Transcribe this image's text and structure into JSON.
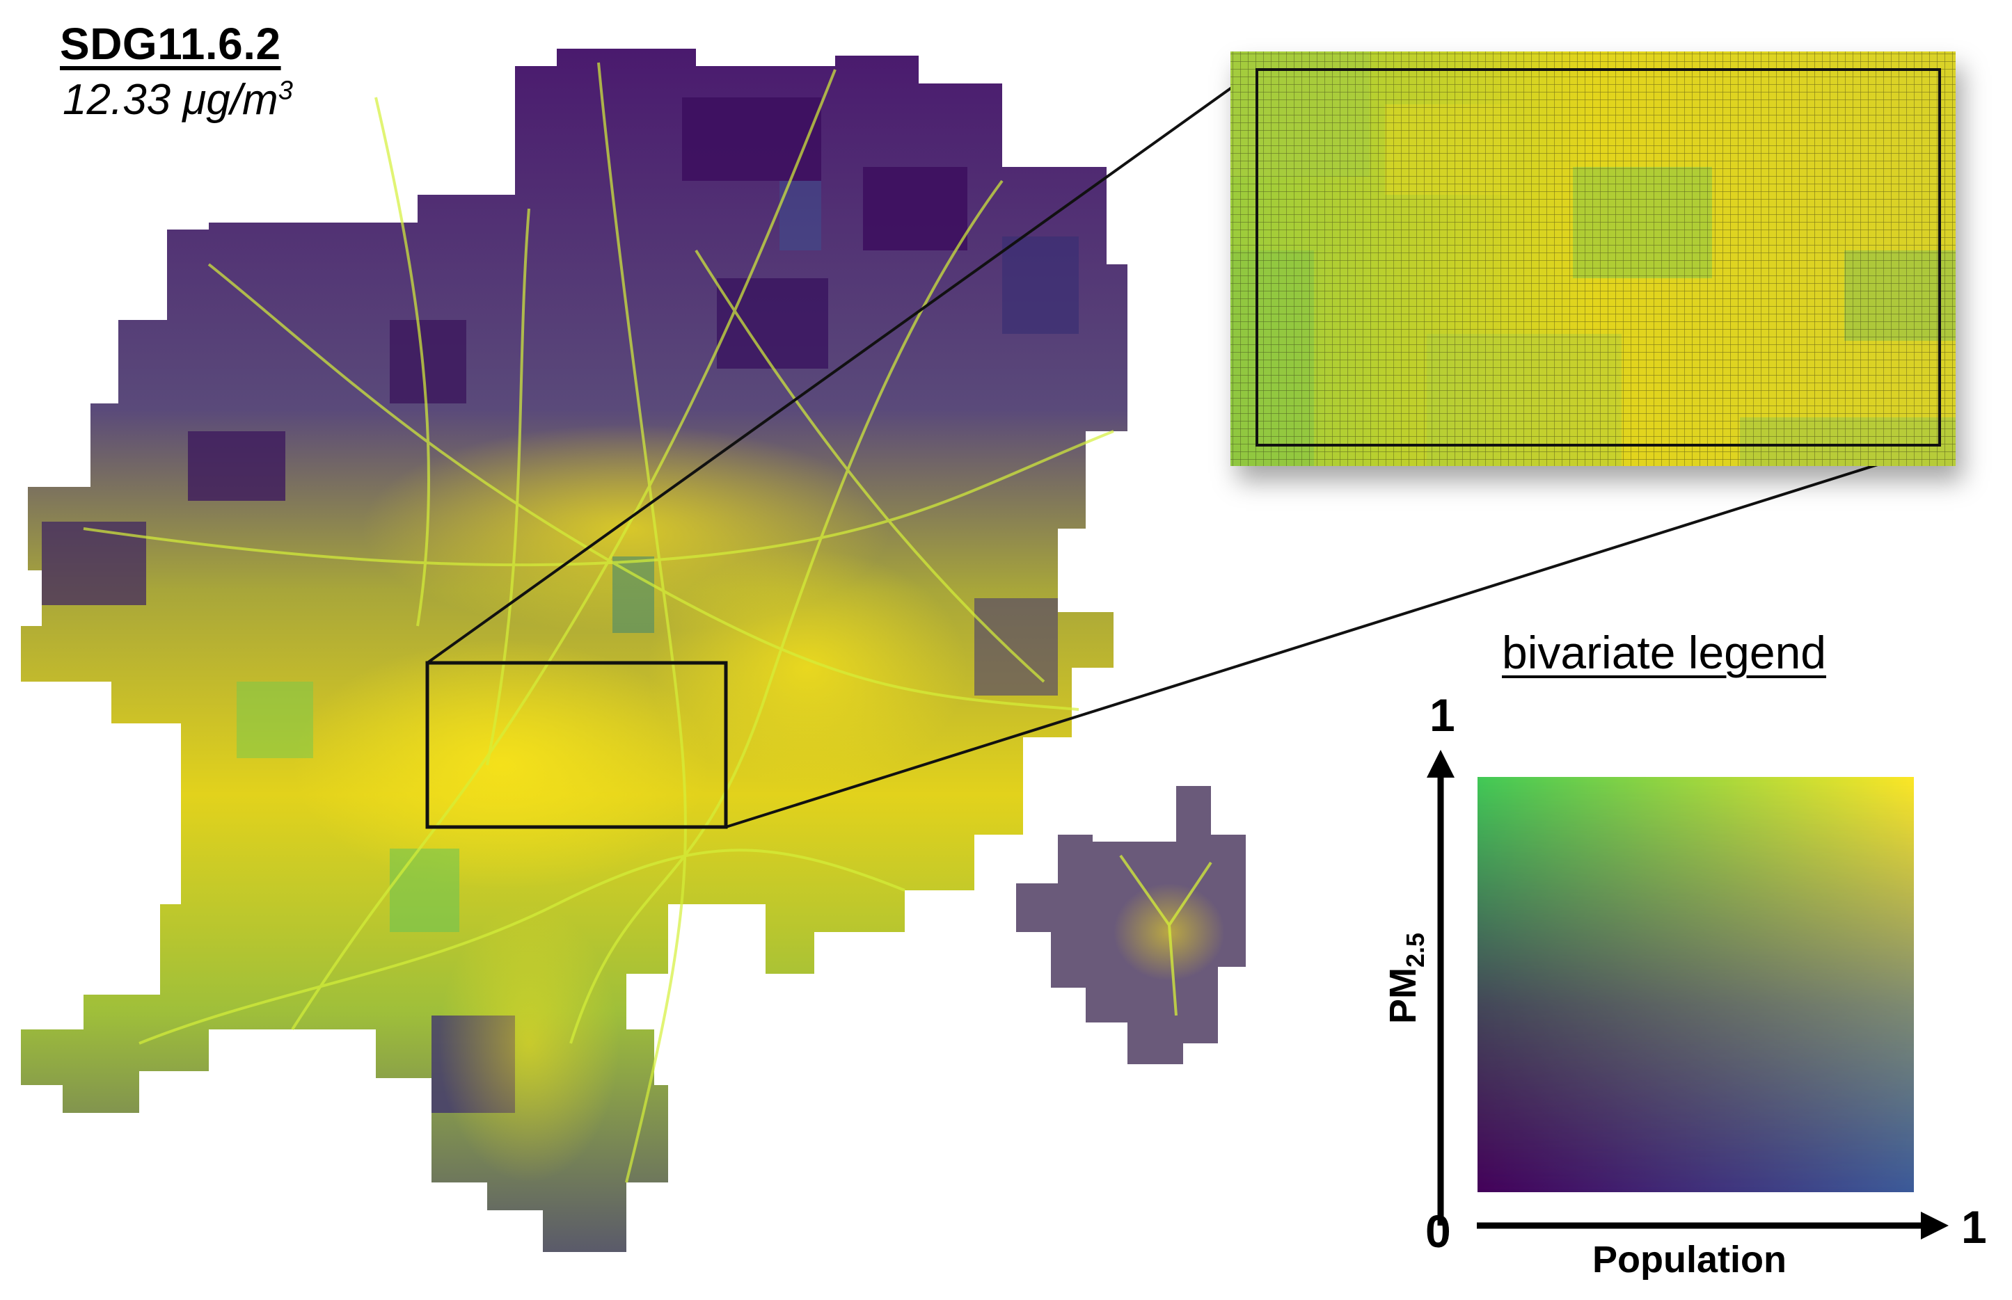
{
  "header": {
    "title": "SDG11.6.2",
    "value": "12.33 μg/m",
    "value_superscript": "3"
  },
  "legend": {
    "title": "bivariate legend",
    "x_axis_label": "Population",
    "y_axis_label_main": "PM",
    "y_axis_label_sub": "2.5",
    "origin_tick": "0",
    "x_max_tick": "1",
    "y_max_tick": "1",
    "colors": {
      "low_low": "#44015a",
      "high_population_low_pm": "#3b5a9a",
      "low_population_high_pm": "#41c956",
      "high_high": "#fde725"
    }
  }
}
